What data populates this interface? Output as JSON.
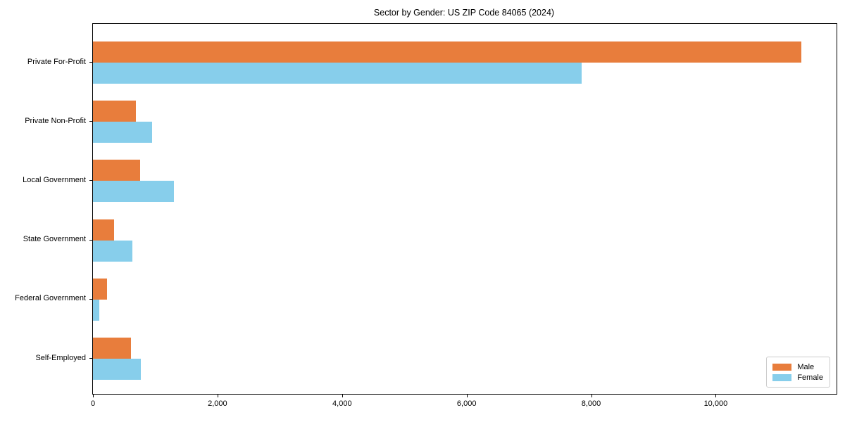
{
  "chart_data": {
    "type": "bar",
    "orientation": "horizontal",
    "title": "Sector by Gender: US ZIP Code 84065 (2024)",
    "xlabel": "",
    "ylabel": "",
    "categories": [
      "Private For-Profit",
      "Private Non-Profit",
      "Local Government",
      "State Government",
      "Federal Government",
      "Self-Employed"
    ],
    "series": [
      {
        "name": "Male",
        "color": "#E87D3C",
        "values": [
          11370,
          690,
          760,
          340,
          225,
          610
        ]
      },
      {
        "name": "Female",
        "color": "#87CEEB",
        "values": [
          7850,
          950,
          1300,
          630,
          100,
          770
        ]
      }
    ],
    "xlim": [
      0,
      11940
    ],
    "x_ticks": [
      {
        "value": 0,
        "label": "0"
      },
      {
        "value": 2000,
        "label": "2,000"
      },
      {
        "value": 4000,
        "label": "4,000"
      },
      {
        "value": 6000,
        "label": "6,000"
      },
      {
        "value": 8000,
        "label": "8,000"
      },
      {
        "value": 10000,
        "label": "10,000"
      }
    ],
    "grid": false,
    "legend_position": "lower right"
  }
}
